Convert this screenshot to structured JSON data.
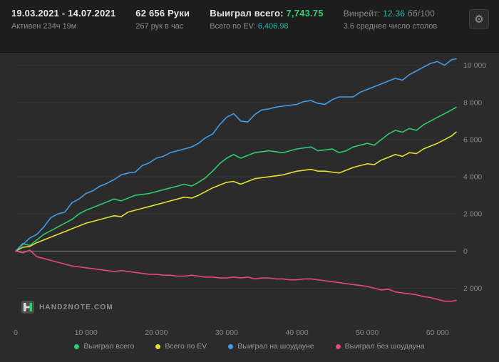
{
  "header": {
    "date_range": "19.03.2021 - 14.07.2021",
    "active_time": "Активен 234ч 19м",
    "hands": "62 656 Руки",
    "hands_per_hour": "267 рук в час",
    "won_total_label": "Выиграл всего:",
    "won_total_value": "7,743.75",
    "ev_total_label": "Всего по EV:",
    "ev_total_value": "6,406.98",
    "winrate_label": "Винрейт:",
    "winrate_value": "12.36",
    "winrate_unit": "бб/100",
    "avg_tables": "3.6 среднее число столов"
  },
  "icons": {
    "gear": "⚙"
  },
  "logo": {
    "text": "HAND2NOTE.COM"
  },
  "colors": {
    "won_total": "#2ecc71",
    "ev_total": "#e2e034",
    "showdown": "#3f9de8",
    "non_showdown": "#e84a6f",
    "background": "#2b2b2b",
    "header_background": "#1d1d1d",
    "axis_text": "#8a8a8a",
    "zero_line": "#7d7d7d"
  },
  "chart_data": {
    "type": "line",
    "title": "",
    "xlabel": "",
    "ylabel": "",
    "grid": true,
    "legend_position": "bottom",
    "xlim": [
      0,
      62656
    ],
    "ylim": [
      -3900,
      10600
    ],
    "x_ticks": [
      {
        "value": 0,
        "label": "0"
      },
      {
        "value": 10000,
        "label": "10 000"
      },
      {
        "value": 20000,
        "label": "20 000"
      },
      {
        "value": 30000,
        "label": "30 000"
      },
      {
        "value": 40000,
        "label": "40 000"
      },
      {
        "value": 50000,
        "label": "50 000"
      },
      {
        "value": 60000,
        "label": "60 000"
      }
    ],
    "y_ticks": [
      {
        "value": 10000,
        "label": "10 000"
      },
      {
        "value": 8000,
        "label": "8 000"
      },
      {
        "value": 6000,
        "label": "6 000"
      },
      {
        "value": 4000,
        "label": "4 000"
      },
      {
        "value": 2000,
        "label": "2 000"
      },
      {
        "value": 0,
        "label": "0"
      },
      {
        "value": -2000,
        "label": "2 000"
      }
    ],
    "x": [
      0,
      1000,
      2000,
      3000,
      4000,
      5000,
      6000,
      7000,
      8000,
      9000,
      10000,
      11000,
      12000,
      13000,
      14000,
      15000,
      16000,
      17000,
      18000,
      19000,
      20000,
      21000,
      22000,
      23000,
      24000,
      25000,
      26000,
      27000,
      28000,
      29000,
      30000,
      31000,
      32000,
      33000,
      34000,
      35000,
      36000,
      37000,
      38000,
      39000,
      40000,
      41000,
      42000,
      43000,
      44000,
      45000,
      46000,
      47000,
      48000,
      49000,
      50000,
      51000,
      52000,
      53000,
      54000,
      55000,
      56000,
      57000,
      58000,
      59000,
      60000,
      61000,
      62000,
      62656
    ],
    "series": [
      {
        "name": "Выиграл всего",
        "color": "#2ecc71",
        "final_value": 7743.75,
        "values": [
          0,
          400,
          300,
          600,
          900,
          1100,
          1300,
          1500,
          1700,
          2000,
          2200,
          2350,
          2500,
          2650,
          2800,
          2700,
          2850,
          3000,
          3050,
          3100,
          3200,
          3300,
          3400,
          3500,
          3600,
          3500,
          3700,
          3950,
          4300,
          4700,
          5000,
          5200,
          5000,
          5150,
          5300,
          5350,
          5400,
          5350,
          5300,
          5400,
          5500,
          5550,
          5600,
          5400,
          5450,
          5500,
          5300,
          5400,
          5600,
          5700,
          5800,
          5700,
          6000,
          6300,
          6500,
          6400,
          6600,
          6500,
          6800,
          7000,
          7200,
          7400,
          7600,
          7743.75
        ]
      },
      {
        "name": "Всего по EV",
        "color": "#e2e034",
        "final_value": 6406.98,
        "values": [
          0,
          200,
          250,
          450,
          600,
          750,
          900,
          1050,
          1200,
          1350,
          1500,
          1600,
          1700,
          1800,
          1900,
          1850,
          2100,
          2200,
          2300,
          2400,
          2500,
          2600,
          2700,
          2800,
          2900,
          2850,
          3000,
          3200,
          3400,
          3550,
          3700,
          3750,
          3600,
          3750,
          3900,
          3950,
          4000,
          4050,
          4100,
          4200,
          4300,
          4350,
          4400,
          4300,
          4300,
          4250,
          4200,
          4350,
          4500,
          4600,
          4700,
          4650,
          4900,
          5050,
          5200,
          5100,
          5300,
          5250,
          5500,
          5650,
          5800,
          6000,
          6200,
          6406.98
        ]
      },
      {
        "name": "Выиграл на шоудауне",
        "color": "#3f9de8",
        "final_value": 10350,
        "values": [
          0,
          350,
          700,
          900,
          1300,
          1800,
          2000,
          2100,
          2600,
          2800,
          3100,
          3250,
          3500,
          3650,
          3850,
          4100,
          4200,
          4250,
          4600,
          4750,
          5000,
          5100,
          5300,
          5400,
          5500,
          5600,
          5800,
          6100,
          6300,
          6800,
          7200,
          7400,
          7000,
          6950,
          7350,
          7600,
          7650,
          7750,
          7800,
          7850,
          7900,
          8050,
          8100,
          7950,
          7900,
          8150,
          8300,
          8300,
          8300,
          8550,
          8700,
          8850,
          9000,
          9150,
          9300,
          9200,
          9500,
          9700,
          9900,
          10100,
          10200,
          10000,
          10300,
          10350
        ]
      },
      {
        "name": "Выиграл без шоудауна",
        "color": "#e84a6f",
        "final_value": -2656,
        "values": [
          0,
          -100,
          50,
          -300,
          -400,
          -500,
          -600,
          -700,
          -800,
          -850,
          -900,
          -950,
          -1000,
          -1050,
          -1100,
          -1050,
          -1100,
          -1150,
          -1200,
          -1250,
          -1250,
          -1300,
          -1300,
          -1350,
          -1350,
          -1300,
          -1350,
          -1400,
          -1400,
          -1450,
          -1450,
          -1400,
          -1450,
          -1400,
          -1500,
          -1450,
          -1450,
          -1500,
          -1500,
          -1550,
          -1550,
          -1500,
          -1500,
          -1550,
          -1600,
          -1650,
          -1700,
          -1750,
          -1800,
          -1850,
          -1900,
          -2000,
          -2100,
          -2050,
          -2200,
          -2250,
          -2300,
          -2350,
          -2450,
          -2500,
          -2600,
          -2700,
          -2700,
          -2656
        ]
      }
    ]
  }
}
